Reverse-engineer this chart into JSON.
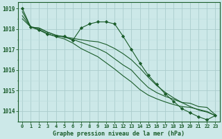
{
  "title": "Graphe pression niveau de la mer (hPa)",
  "bg_color": "#cce8e8",
  "grid_color_major": "#aacccc",
  "grid_color_minor": "#bbdddd",
  "line_color": "#1a5c2a",
  "axis_bottom_color": "#2a6632",
  "xlim": [
    -0.5,
    23.5
  ],
  "ylim": [
    1013.5,
    1019.3
  ],
  "yticks": [
    1014,
    1015,
    1016,
    1017,
    1018,
    1019
  ],
  "x_labels": [
    "0",
    "1",
    "2",
    "3",
    "4",
    "5",
    "6",
    "7",
    "8",
    "9",
    "10",
    "11",
    "12",
    "13",
    "14",
    "15",
    "16",
    "17",
    "18",
    "19",
    "20",
    "21",
    "22",
    "23"
  ],
  "series_plain": [
    [
      1018.85,
      1018.1,
      1018.05,
      1017.85,
      1017.7,
      1017.6,
      1017.5,
      1017.35,
      1017.2,
      1017.05,
      1016.85,
      1016.55,
      1016.25,
      1016.0,
      1015.55,
      1015.15,
      1014.9,
      1014.72,
      1014.58,
      1014.42,
      1014.38,
      1014.22,
      1014.18,
      1013.82
    ],
    [
      1018.65,
      1018.1,
      1017.98,
      1017.78,
      1017.63,
      1017.52,
      1017.32,
      1017.05,
      1016.85,
      1016.65,
      1016.35,
      1016.05,
      1015.72,
      1015.42,
      1015.05,
      1014.78,
      1014.6,
      1014.45,
      1014.32,
      1014.22,
      1014.18,
      1014.08,
      1013.98,
      1013.78
    ],
    [
      1018.5,
      1018.1,
      1018.05,
      1017.85,
      1017.7,
      1017.62,
      1017.55,
      1017.48,
      1017.42,
      1017.38,
      1017.25,
      1017.05,
      1016.8,
      1016.5,
      1016.1,
      1015.65,
      1015.25,
      1014.92,
      1014.65,
      1014.42,
      1014.22,
      1014.05,
      1013.95,
      1013.78
    ]
  ],
  "series_marker": [
    1019.0,
    1018.1,
    1017.95,
    1017.75,
    1017.65,
    1017.65,
    1017.45,
    1018.05,
    1018.25,
    1018.35,
    1018.35,
    1018.25,
    1017.65,
    1017.0,
    1016.35,
    1015.75,
    1015.3,
    1014.85,
    1014.48,
    1014.12,
    1013.92,
    1013.72,
    1013.58,
    1013.78
  ]
}
